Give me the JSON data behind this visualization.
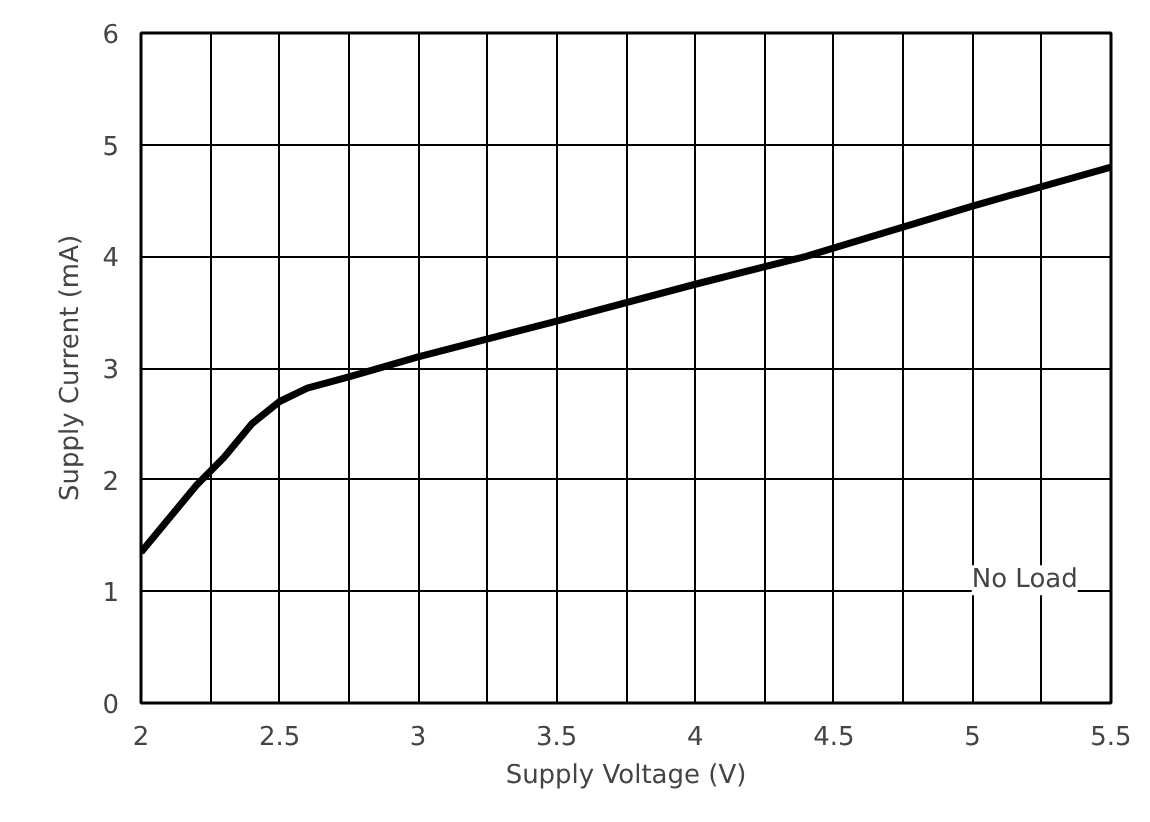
{
  "chart_data": {
    "type": "line",
    "xlabel": "Supply Voltage (V)",
    "ylabel": "Supply Current (mA)",
    "x": [
      2,
      2.1,
      2.2,
      2.3,
      2.4,
      2.5,
      2.6,
      2.75,
      3,
      3.5,
      4,
      4.4,
      5,
      5.5
    ],
    "series": [
      {
        "color": "#000000",
        "values": [
          1.35,
          1.65,
          1.95,
          2.2,
          2.5,
          2.7,
          2.82,
          2.92,
          3.1,
          3.42,
          3.75,
          4.0,
          4.45,
          4.8
        ]
      }
    ],
    "xlim": [
      2,
      5.5
    ],
    "ylim": [
      0,
      6
    ],
    "xticks": [
      2,
      {
        "value": 2.25,
        "label": null
      },
      2.5,
      {
        "value": 2.75,
        "label": null
      },
      3,
      {
        "value": 3.25,
        "label": null
      },
      3.5,
      {
        "value": 3.75,
        "label": null
      },
      4,
      {
        "value": 4.25,
        "label": null
      },
      4.5,
      {
        "value": 4.75,
        "label": null
      },
      5,
      {
        "value": 5.25,
        "label": null
      },
      5.5
    ],
    "yticks": [
      0,
      1,
      2,
      3,
      4,
      5,
      6
    ],
    "grid": true,
    "line_style": "solid",
    "annotations": [
      "No Load"
    ]
  }
}
